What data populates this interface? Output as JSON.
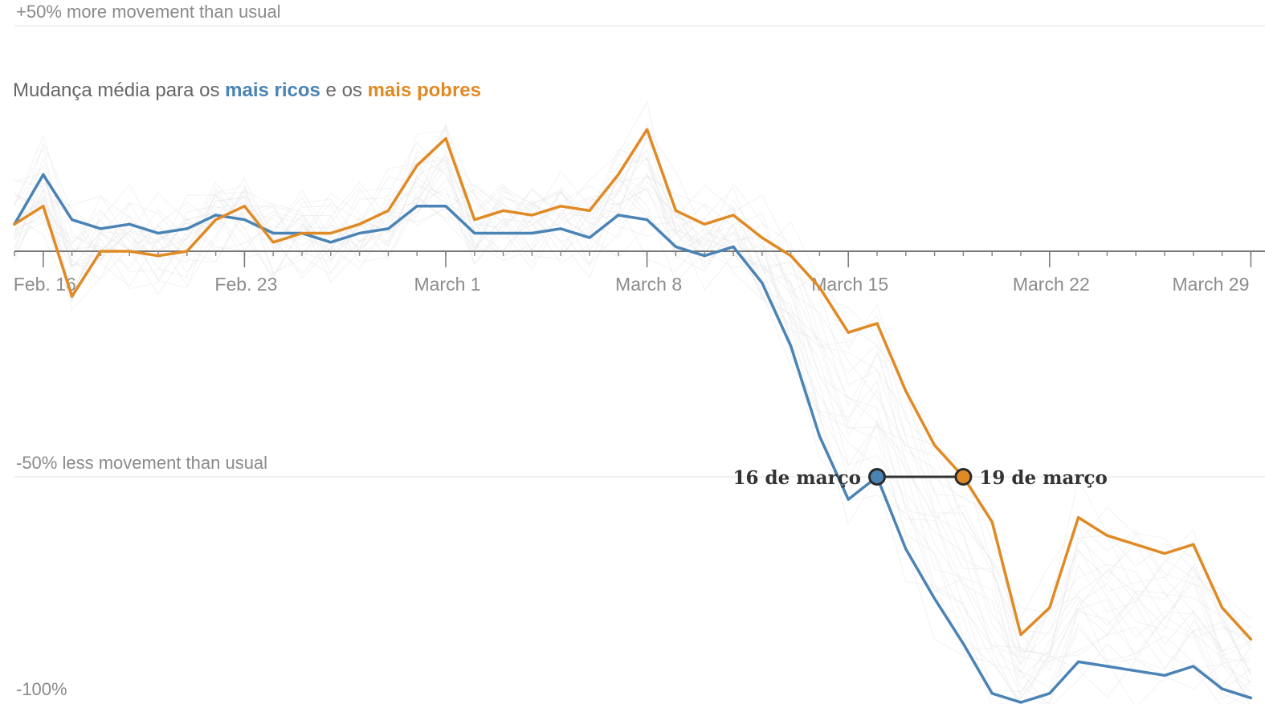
{
  "chart_data": {
    "type": "line",
    "title": "",
    "subtitle": {
      "prefix": "Mudança média para os ",
      "rich": "mais ricos",
      "middle": " e os ",
      "poor": "mais pobres"
    },
    "reference_labels": {
      "top": "+50% more movement than usual",
      "middle": "-50% less movement than usual",
      "bottom": "-100%"
    },
    "ylim": [
      -100,
      50
    ],
    "grid": true,
    "x_dates": [
      "Feb. 15",
      "Feb. 16",
      "Feb. 17",
      "Feb. 18",
      "Feb. 19",
      "Feb. 20",
      "Feb. 21",
      "Feb. 22",
      "Feb. 23",
      "Feb. 24",
      "Feb. 25",
      "Feb. 26",
      "Feb. 27",
      "Feb. 28",
      "Feb. 29",
      "March 1",
      "March 2",
      "March 3",
      "March 4",
      "March 5",
      "March 6",
      "March 7",
      "March 8",
      "March 9",
      "March 10",
      "March 11",
      "March 12",
      "March 13",
      "March 14",
      "March 15",
      "March 16",
      "March 17",
      "March 18",
      "March 19",
      "March 20",
      "March 21",
      "March 22",
      "March 23",
      "March 24",
      "March 25",
      "March 26",
      "March 27",
      "March 28",
      "March 29"
    ],
    "tick_labels": [
      {
        "label": "Feb. 16",
        "date": "Feb. 16"
      },
      {
        "label": "Feb. 23",
        "date": "Feb. 23"
      },
      {
        "label": "March 1",
        "date": "March 1"
      },
      {
        "label": "March 8",
        "date": "March 8"
      },
      {
        "label": "March 15",
        "date": "March 15"
      },
      {
        "label": "March 22",
        "date": "March 22"
      },
      {
        "label": "March 29",
        "date": "March 29"
      }
    ],
    "series": [
      {
        "name": "mais ricos",
        "color": "#4a83b5",
        "values": [
          6,
          17,
          7,
          5,
          6,
          4,
          5,
          8,
          7,
          4,
          4,
          2,
          4,
          5,
          10,
          10,
          4,
          4,
          4,
          5,
          3,
          8,
          7,
          1,
          -1,
          1,
          -7,
          -21,
          -41,
          -55,
          -50,
          -66,
          -77,
          -87,
          -98,
          -100,
          -98,
          -91,
          -92,
          -93,
          -94,
          -92,
          -97,
          -99
        ]
      },
      {
        "name": "mais pobres",
        "color": "#e08a24",
        "values": [
          6,
          10,
          -10,
          0,
          0,
          -1,
          0,
          7,
          10,
          2,
          4,
          4,
          6,
          9,
          19,
          25,
          7,
          9,
          8,
          10,
          9,
          17,
          27,
          9,
          6,
          8,
          3,
          -1,
          -8,
          -18,
          -16,
          -31,
          -43,
          -50,
          -60,
          -85,
          -79,
          -59,
          -63,
          -65,
          -67,
          -65,
          -79,
          -86
        ]
      }
    ],
    "annotations": [
      {
        "label": "16 de março",
        "date": "March 16",
        "series": "mais ricos",
        "value": -50
      },
      {
        "label": "19 de março",
        "date": "March 19",
        "series": "mais pobres",
        "value": -50
      }
    ],
    "background_lines": {
      "color": "#e8e8e8",
      "count": 24
    }
  }
}
